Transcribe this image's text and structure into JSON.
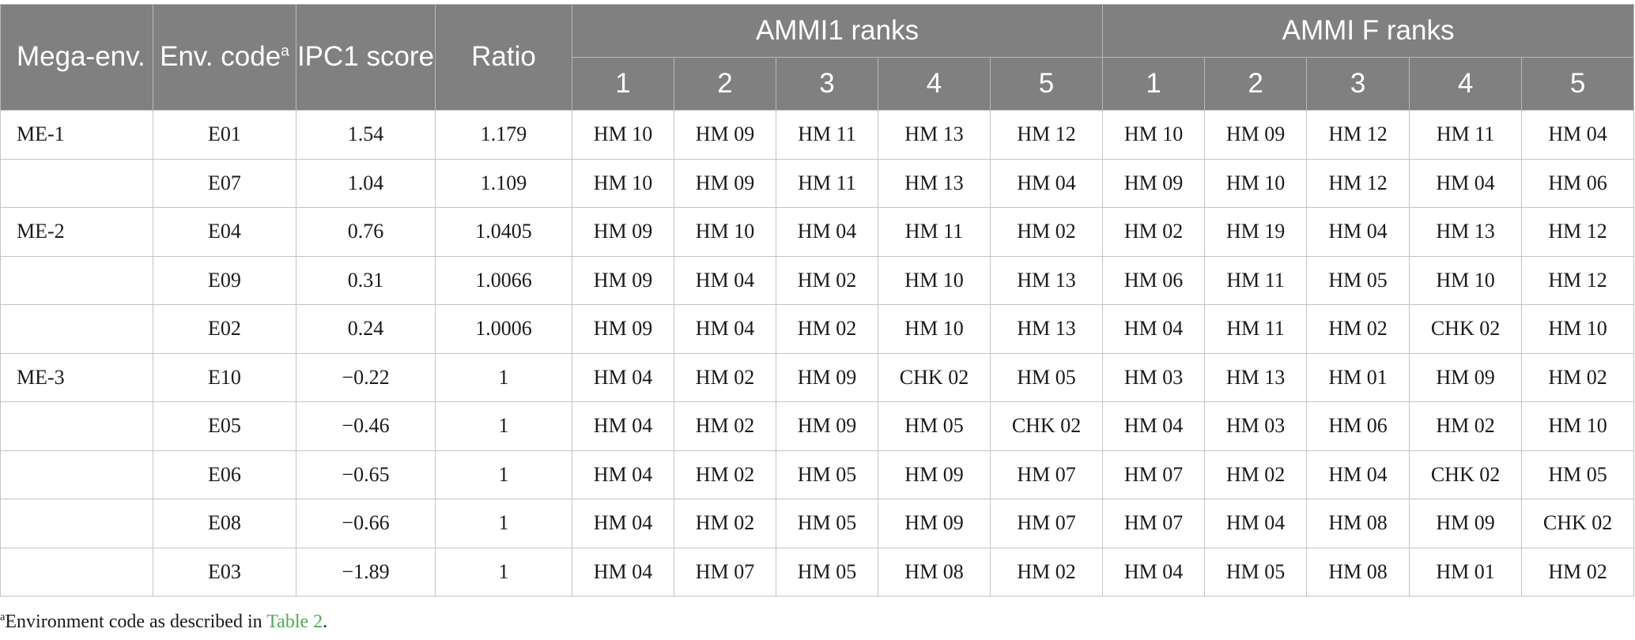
{
  "header": {
    "mega_env": "Mega-env.",
    "env_code": "Env. code",
    "env_code_sup": "a",
    "ipc1_score": "IPC1 score",
    "ratio": "Ratio",
    "ammi1_ranks": "AMMI1 ranks",
    "ammif_ranks": "AMMI F ranks",
    "rank_numbers": [
      "1",
      "2",
      "3",
      "4",
      "5"
    ]
  },
  "rows": [
    {
      "mega": "ME-1",
      "code": "E01",
      "ipc1": "1.54",
      "ratio": "1.179",
      "ammi1": [
        "HM 10",
        "HM 09",
        "HM 11",
        "HM 13",
        "HM 12"
      ],
      "ammif": [
        "HM 10",
        "HM 09",
        "HM 12",
        "HM 11",
        "HM 04"
      ]
    },
    {
      "mega": "",
      "code": "E07",
      "ipc1": "1.04",
      "ratio": "1.109",
      "ammi1": [
        "HM 10",
        "HM 09",
        "HM 11",
        "HM 13",
        "HM 04"
      ],
      "ammif": [
        "HM 09",
        "HM 10",
        "HM 12",
        "HM 04",
        "HM 06"
      ]
    },
    {
      "mega": "ME-2",
      "code": "E04",
      "ipc1": "0.76",
      "ratio": "1.0405",
      "ammi1": [
        "HM 09",
        "HM 10",
        "HM 04",
        "HM 11",
        "HM 02"
      ],
      "ammif": [
        "HM 02",
        "HM 19",
        "HM 04",
        "HM 13",
        "HM 12"
      ]
    },
    {
      "mega": "",
      "code": "E09",
      "ipc1": "0.31",
      "ratio": "1.0066",
      "ammi1": [
        "HM 09",
        "HM 04",
        "HM 02",
        "HM 10",
        "HM 13"
      ],
      "ammif": [
        "HM 06",
        "HM 11",
        "HM 05",
        "HM 10",
        "HM 12"
      ]
    },
    {
      "mega": "",
      "code": "E02",
      "ipc1": "0.24",
      "ratio": "1.0006",
      "ammi1": [
        "HM 09",
        "HM 04",
        "HM 02",
        "HM 10",
        "HM 13"
      ],
      "ammif": [
        "HM 04",
        "HM 11",
        "HM 02",
        "CHK 02",
        "HM 10"
      ]
    },
    {
      "mega": "ME-3",
      "code": "E10",
      "ipc1": "−0.22",
      "ratio": "1",
      "ammi1": [
        "HM 04",
        "HM 02",
        "HM 09",
        "CHK 02",
        "HM 05"
      ],
      "ammif": [
        "HM 03",
        "HM 13",
        "HM 01",
        "HM 09",
        "HM 02"
      ]
    },
    {
      "mega": "",
      "code": "E05",
      "ipc1": "−0.46",
      "ratio": "1",
      "ammi1": [
        "HM 04",
        "HM 02",
        "HM 09",
        "HM 05",
        "CHK 02"
      ],
      "ammif": [
        "HM 04",
        "HM 03",
        "HM 06",
        "HM 02",
        "HM 10"
      ]
    },
    {
      "mega": "",
      "code": "E06",
      "ipc1": "−0.65",
      "ratio": "1",
      "ammi1": [
        "HM 04",
        "HM 02",
        "HM 05",
        "HM 09",
        "HM 07"
      ],
      "ammif": [
        "HM 07",
        "HM 02",
        "HM 04",
        "CHK 02",
        "HM 05"
      ]
    },
    {
      "mega": "",
      "code": "E08",
      "ipc1": "−0.66",
      "ratio": "1",
      "ammi1": [
        "HM 04",
        "HM 02",
        "HM 05",
        "HM 09",
        "HM 07"
      ],
      "ammif": [
        "HM 07",
        "HM 04",
        "HM 08",
        "HM 09",
        "CHK 02"
      ]
    },
    {
      "mega": "",
      "code": "E03",
      "ipc1": "−1.89",
      "ratio": "1",
      "ammi1": [
        "HM 04",
        "HM 07",
        "HM 05",
        "HM 08",
        "HM 02"
      ],
      "ammif": [
        "HM 04",
        "HM 05",
        "HM 08",
        "HM 01",
        "HM 02"
      ]
    }
  ],
  "footnote": {
    "marker": "a",
    "text": "Environment code as described in ",
    "link": "Table 2",
    "end": "."
  },
  "colors": {
    "header_bg": "#808080",
    "header_text": "#ffffff",
    "link": "#4caf50"
  }
}
